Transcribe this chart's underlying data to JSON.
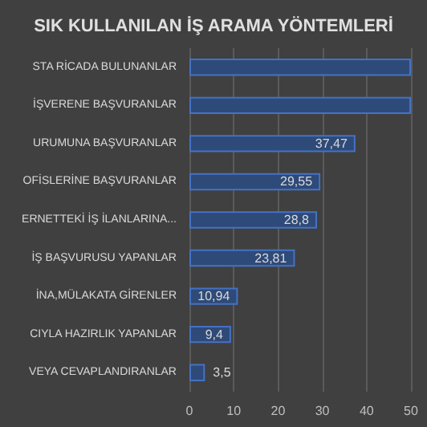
{
  "chart_data": {
    "type": "bar",
    "orientation": "horizontal",
    "title": "SIK KULLANILAN İŞ ARAMA YÖNTEMLERİ",
    "categories": [
      "STA RİCADA BULUNANLAR",
      "İŞVERENE BAŞVURANLAR",
      "URUMUNA BAŞVURANLAR",
      "OFİSLERİNE BAŞVURANLAR",
      "ERNETTEKİ İŞ İLANLARINA...",
      "İŞ BAŞVURUSU YAPANLAR",
      "İNA,MÜLAKATA GİRENLER",
      "CIYLA HAZIRLIK YAPANLAR",
      "VEYA CEVAPLANDIRANLAR"
    ],
    "values": [
      50,
      50,
      37.47,
      29.55,
      28.8,
      23.81,
      10.94,
      9.4,
      3.5
    ],
    "value_labels": [
      null,
      null,
      "37,47",
      "29,55",
      "28,8",
      "23,81",
      "10,94",
      "9,4",
      "3,5"
    ],
    "color": "#4472c4",
    "xlim": [
      0,
      50
    ],
    "xticks": [
      0,
      10,
      20,
      30,
      40,
      50
    ],
    "grid": "x"
  }
}
